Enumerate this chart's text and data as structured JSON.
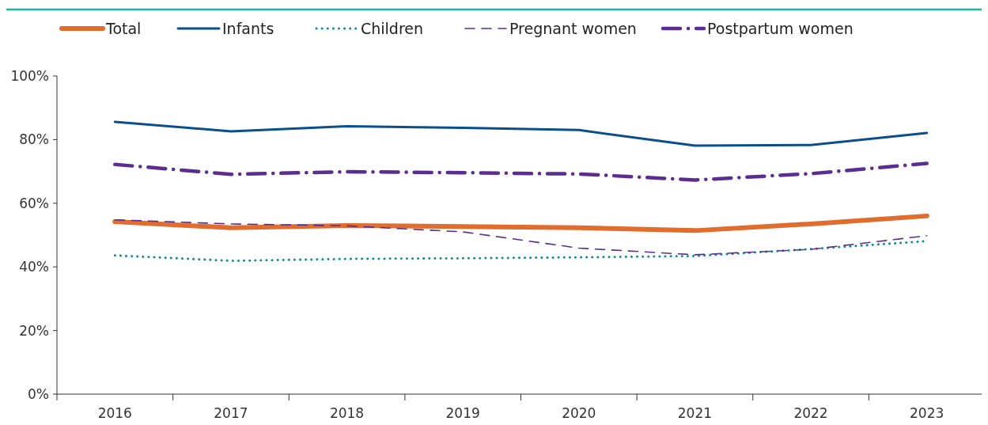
{
  "chart_data": {
    "type": "line",
    "categories": [
      "2016",
      "2017",
      "2018",
      "2019",
      "2020",
      "2021",
      "2022",
      "2023"
    ],
    "ylim": [
      0,
      100
    ],
    "yticks": [
      {
        "value": 0,
        "label": "0%"
      },
      {
        "value": 20,
        "label": "20%"
      },
      {
        "value": 40,
        "label": "40%"
      },
      {
        "value": 60,
        "label": "60%"
      },
      {
        "value": 80,
        "label": "80%"
      },
      {
        "value": 100,
        "label": "100%"
      }
    ],
    "legend": "top",
    "grid": false,
    "series": [
      {
        "name": "Total",
        "color": "#e06c2e",
        "line_style": "solid",
        "values": [
          54.2,
          52.3,
          53.0,
          52.7,
          52.3,
          51.4,
          53.5,
          56.0
        ]
      },
      {
        "name": "Infants",
        "color": "#0b4f8a",
        "line_style": "solid",
        "values": [
          85.6,
          82.6,
          84.2,
          83.7,
          83.0,
          78.1,
          78.3,
          82.1
        ]
      },
      {
        "name": "Children",
        "color": "#0a8aa0",
        "line_style": "dotted",
        "values": [
          43.6,
          41.9,
          42.5,
          42.7,
          43.0,
          43.4,
          45.6,
          48.1
        ]
      },
      {
        "name": "Pregnant women",
        "color": "#5b2d90",
        "line_style": "dashed",
        "values": [
          54.8,
          53.5,
          52.9,
          51.0,
          45.9,
          43.8,
          45.5,
          49.8
        ]
      },
      {
        "name": "Postpartum women",
        "color": "#5b2d90",
        "line_style": "dashdot",
        "values": [
          72.2,
          69.1,
          69.9,
          69.6,
          69.2,
          67.3,
          69.3,
          72.5
        ]
      }
    ]
  }
}
